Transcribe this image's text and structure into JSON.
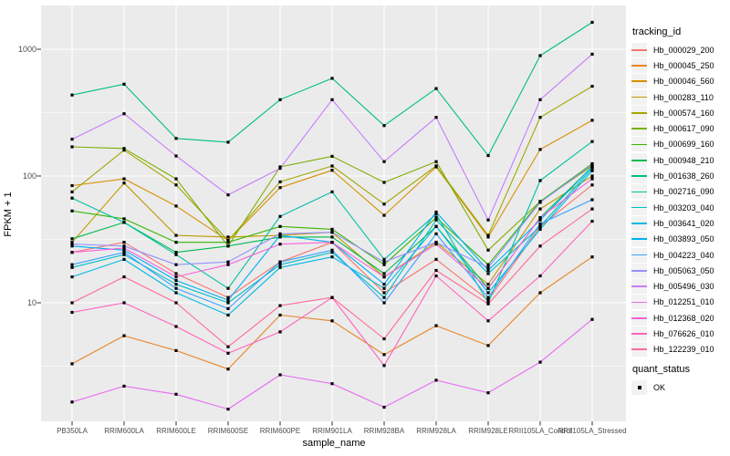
{
  "chart_data": {
    "type": "line",
    "title": "",
    "xlabel": "sample_name",
    "ylabel": "FPKM + 1",
    "y_scale": "log10",
    "y_ticks": [
      10,
      100,
      1000
    ],
    "ylim": [
      1.15,
      2100
    ],
    "grid": true,
    "panel_bg": "#EBEBEB",
    "grid_color": "#FFFFFF",
    "point_color": "#000000",
    "legend_title": "tracking_id",
    "quant_legend": {
      "title": "quant_status",
      "items": [
        "OK"
      ]
    },
    "categories": [
      "PB350LA",
      "RRIM600LA",
      "RRIM600LE",
      "RRIM600SE",
      "RRIM600PE",
      "RRIM901LA",
      "RRIM928BA",
      "RRIM928LA",
      "RRIM928LE",
      "RRII105LA_Control",
      "RRII105LA_Stressed"
    ],
    "series": [
      {
        "name": "Hb_000029_200",
        "color": "#F8766D",
        "values": [
          25,
          30,
          17,
          11,
          21,
          30,
          12,
          22,
          10.5,
          40,
          85
        ]
      },
      {
        "name": "Hb_000045_250",
        "color": "#E88526",
        "values": [
          3.3,
          5.5,
          4.2,
          3.0,
          8.0,
          7.2,
          3.9,
          6.6,
          4.6,
          12,
          23
        ]
      },
      {
        "name": "Hb_000046_560",
        "color": "#D89000",
        "values": [
          84,
          95,
          58,
          31,
          81,
          111,
          49,
          118,
          33,
          162,
          275
        ]
      },
      {
        "name": "Hb_000283_110",
        "color": "#C09B00",
        "values": [
          30,
          88,
          34,
          33,
          34,
          36,
          16,
          30,
          14,
          55,
          100
        ]
      },
      {
        "name": "Hb_000574_160",
        "color": "#A3A500",
        "values": [
          75,
          160,
          85,
          31,
          90,
          120,
          60,
          120,
          34,
          290,
          510
        ]
      },
      {
        "name": "Hb_000617_090",
        "color": "#7CAE00",
        "values": [
          170,
          165,
          95,
          28,
          118,
          143,
          89,
          130,
          26,
          63,
          120
        ]
      },
      {
        "name": "Hb_000699_160",
        "color": "#39B600",
        "values": [
          53,
          46,
          30,
          30,
          40,
          38,
          20,
          47,
          20,
          63,
          125
        ]
      },
      {
        "name": "Hb_000948_210",
        "color": "#00BB4E",
        "values": [
          32,
          43,
          25,
          28,
          33,
          33,
          17,
          40,
          13,
          47,
          118
        ]
      },
      {
        "name": "Hb_001638_260",
        "color": "#00BF7D",
        "values": [
          435,
          530,
          198,
          185,
          400,
          590,
          250,
          490,
          145,
          890,
          1630
        ]
      },
      {
        "name": "Hb_002716_090",
        "color": "#00C1A3",
        "values": [
          67,
          43,
          24,
          13,
          48,
          75,
          22,
          50,
          10,
          92,
          187
        ]
      },
      {
        "name": "Hb_003203_040",
        "color": "#00BFC4",
        "values": [
          19,
          24,
          14,
          10,
          20,
          25,
          11,
          45,
          17,
          40,
          115
        ]
      },
      {
        "name": "Hb_003641_020",
        "color": "#00BAE0",
        "values": [
          16,
          22,
          12,
          8,
          19,
          23,
          13,
          40,
          12,
          38,
          110
        ]
      },
      {
        "name": "Hb_003893_050",
        "color": "#00B0F6",
        "values": [
          28,
          26,
          15,
          10.5,
          34,
          30,
          14,
          52,
          18,
          45,
          118
        ]
      },
      {
        "name": "Hb_004223_040",
        "color": "#35A2FF",
        "values": [
          20,
          25,
          13,
          9,
          21,
          26,
          10,
          35,
          11,
          42,
          65
        ]
      },
      {
        "name": "Hb_005063_050",
        "color": "#9590FF",
        "values": [
          29,
          28,
          20,
          21,
          35,
          36,
          21,
          30,
          19,
          62,
          123
        ]
      },
      {
        "name": "Hb_005496_030",
        "color": "#C77CFF",
        "values": [
          195,
          310,
          144,
          71,
          115,
          400,
          130,
          290,
          45,
          400,
          915
        ]
      },
      {
        "name": "Hb_012251_010",
        "color": "#E76BF3",
        "values": [
          1.65,
          2.2,
          1.9,
          1.45,
          2.7,
          2.3,
          1.5,
          2.45,
          1.95,
          3.4,
          7.4
        ]
      },
      {
        "name": "Hb_012368_020",
        "color": "#FA62DB",
        "values": [
          25,
          27,
          16,
          20,
          29,
          30,
          16,
          29,
          13,
          47,
          95
        ]
      },
      {
        "name": "Hb_076626_010",
        "color": "#FF62BC",
        "values": [
          8.4,
          10,
          6.5,
          4.0,
          5.9,
          11,
          3.2,
          16.3,
          7.2,
          16.3,
          44
        ]
      },
      {
        "name": "Hb_122239_010",
        "color": "#FF6A98",
        "values": [
          10,
          16,
          10,
          4.5,
          9.5,
          11,
          5.2,
          18,
          9.8,
          28,
          55
        ]
      }
    ]
  }
}
